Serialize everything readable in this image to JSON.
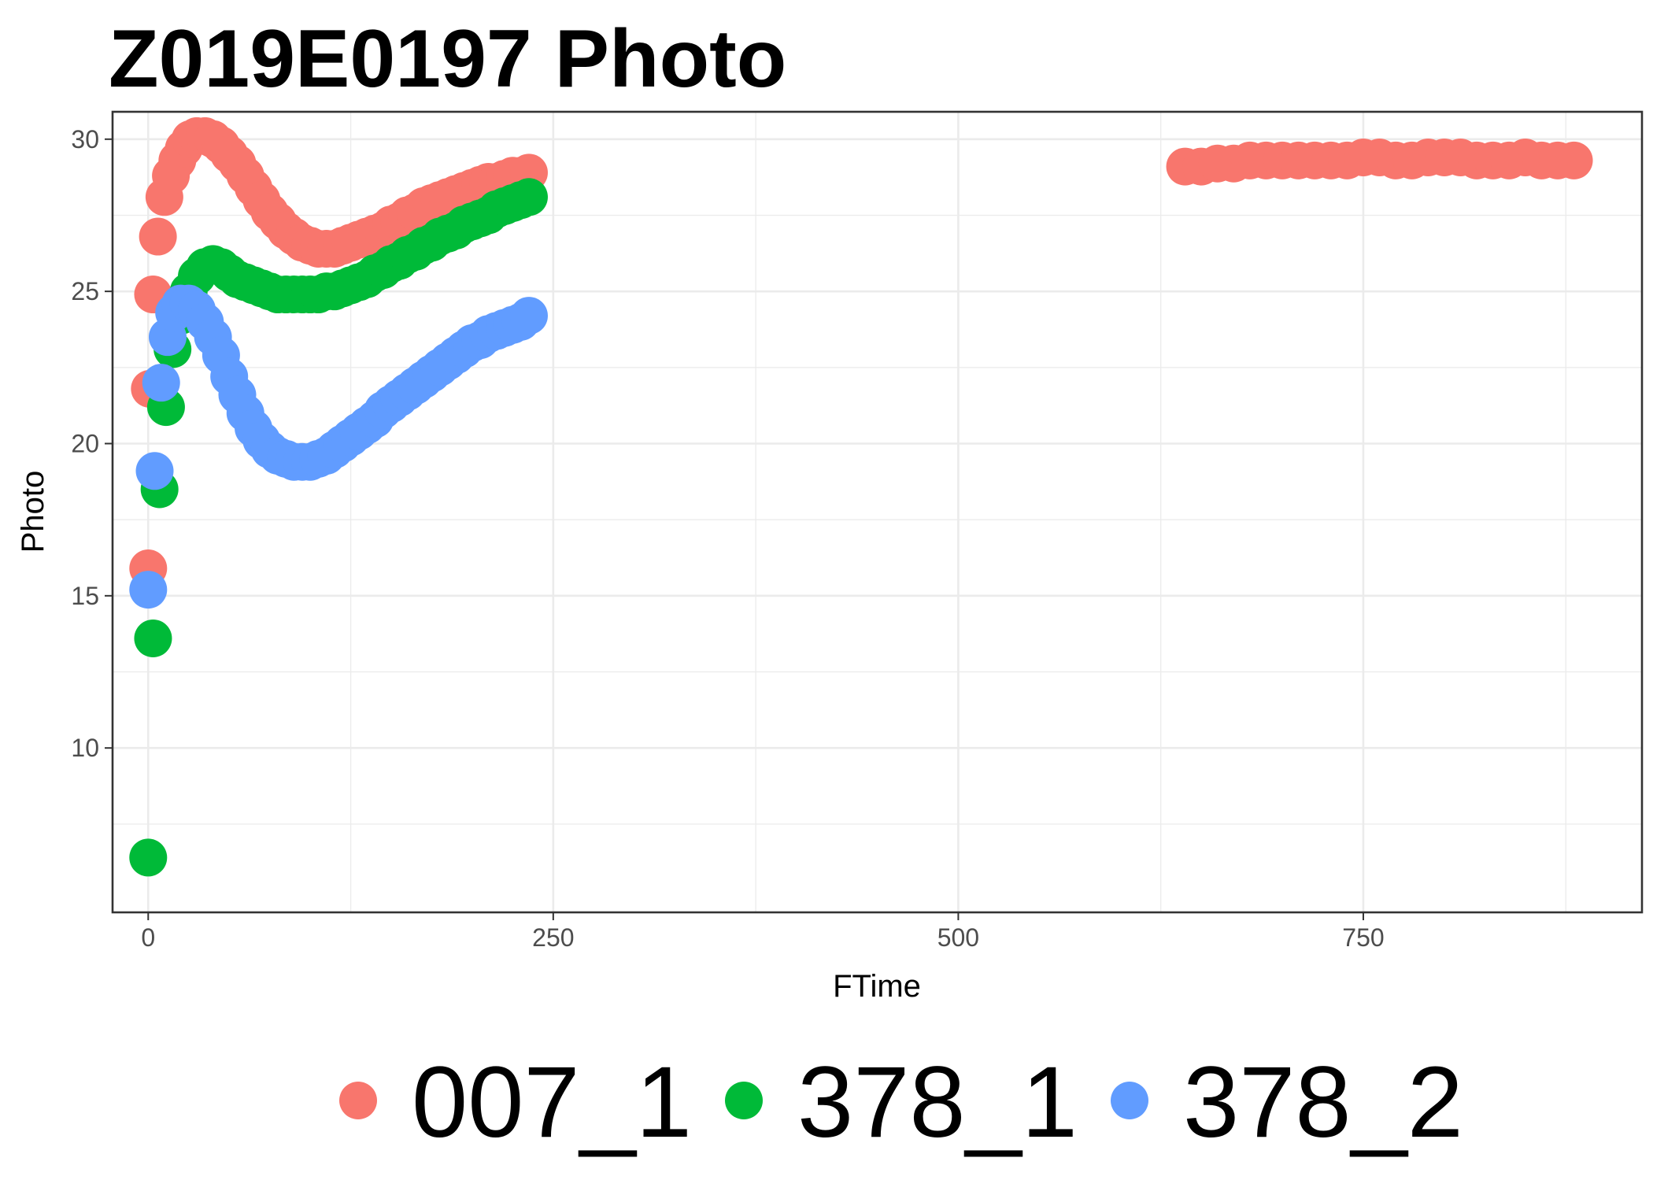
{
  "chart_data": {
    "type": "scatter",
    "title": "Z019E0197 Photo",
    "xlabel": "FTime",
    "ylabel": "Photo",
    "xlim": [
      -22,
      922
    ],
    "ylim": [
      4.6,
      30.9
    ],
    "x_ticks": [
      0,
      250,
      500,
      750
    ],
    "x_tick_labels": [
      "0",
      "250",
      "500",
      "750"
    ],
    "x_minor_ticks": [
      125,
      375,
      625,
      875
    ],
    "y_ticks": [
      10,
      15,
      20,
      25,
      30
    ],
    "y_tick_labels": [
      "10",
      "15",
      "20",
      "25",
      "30"
    ],
    "y_minor_ticks": [
      7.5,
      12.5,
      17.5,
      22.5,
      27.5
    ],
    "grid": true,
    "legend_position": "bottom",
    "series": [
      {
        "name": "007_1",
        "color": "#F8766D",
        "x": [
          0,
          1,
          3,
          6,
          10,
          14,
          18,
          22,
          26,
          30,
          35,
          40,
          45,
          50,
          55,
          60,
          65,
          70,
          75,
          80,
          85,
          90,
          95,
          100,
          105,
          110,
          115,
          120,
          125,
          130,
          135,
          140,
          145,
          150,
          155,
          160,
          165,
          170,
          175,
          180,
          185,
          190,
          195,
          200,
          205,
          210,
          215,
          220,
          225,
          230,
          235,
          640,
          650,
          660,
          670,
          680,
          690,
          700,
          710,
          720,
          730,
          740,
          750,
          760,
          770,
          780,
          790,
          800,
          810,
          820,
          830,
          840,
          850,
          860,
          870,
          880
        ],
        "y": [
          15.9,
          21.8,
          24.9,
          26.8,
          28.1,
          28.8,
          29.3,
          29.7,
          30.0,
          30.1,
          30.1,
          30.0,
          29.8,
          29.5,
          29.2,
          28.8,
          28.4,
          28.0,
          27.6,
          27.3,
          27.0,
          26.8,
          26.6,
          26.5,
          26.4,
          26.4,
          26.4,
          26.5,
          26.6,
          26.7,
          26.8,
          26.9,
          27.0,
          27.2,
          27.3,
          27.5,
          27.6,
          27.8,
          27.9,
          28.0,
          28.1,
          28.2,
          28.3,
          28.4,
          28.5,
          28.6,
          28.6,
          28.7,
          28.8,
          28.8,
          28.9,
          29.1,
          29.1,
          29.2,
          29.2,
          29.3,
          29.3,
          29.3,
          29.3,
          29.3,
          29.3,
          29.3,
          29.4,
          29.4,
          29.3,
          29.3,
          29.4,
          29.4,
          29.4,
          29.3,
          29.3,
          29.3,
          29.4,
          29.3,
          29.3,
          29.3
        ],
        "note_x_unit": ""
      },
      {
        "name": "378_1",
        "color": "#00BA38",
        "x": [
          0,
          3,
          7,
          11,
          15,
          20,
          25,
          30,
          35,
          40,
          45,
          50,
          55,
          60,
          65,
          70,
          75,
          80,
          85,
          90,
          95,
          100,
          105,
          110,
          115,
          120,
          125,
          130,
          135,
          140,
          145,
          150,
          155,
          160,
          165,
          170,
          175,
          180,
          185,
          190,
          195,
          200,
          205,
          210,
          215,
          220,
          225,
          230,
          235
        ],
        "y": [
          6.4,
          13.6,
          18.5,
          21.2,
          23.1,
          24.2,
          25.0,
          25.5,
          25.8,
          25.9,
          25.8,
          25.6,
          25.4,
          25.3,
          25.2,
          25.1,
          25.0,
          24.9,
          24.9,
          24.9,
          24.9,
          24.9,
          24.9,
          25.0,
          25.0,
          25.1,
          25.2,
          25.3,
          25.4,
          25.6,
          25.7,
          25.9,
          26.0,
          26.2,
          26.3,
          26.5,
          26.6,
          26.8,
          26.9,
          27.0,
          27.2,
          27.3,
          27.4,
          27.5,
          27.7,
          27.8,
          27.9,
          28.0,
          28.1
        ]
      },
      {
        "name": "378_2",
        "color": "#619CFF",
        "x": [
          0,
          4,
          8,
          12,
          16,
          20,
          25,
          30,
          35,
          40,
          45,
          50,
          55,
          60,
          65,
          70,
          75,
          80,
          85,
          90,
          95,
          100,
          105,
          110,
          115,
          120,
          125,
          130,
          135,
          140,
          145,
          150,
          155,
          160,
          165,
          170,
          175,
          180,
          185,
          190,
          195,
          200,
          205,
          210,
          215,
          220,
          225,
          230,
          235
        ],
        "y": [
          15.2,
          19.1,
          22.0,
          23.5,
          24.3,
          24.6,
          24.6,
          24.4,
          24.0,
          23.5,
          22.9,
          22.2,
          21.6,
          21.0,
          20.5,
          20.1,
          19.8,
          19.6,
          19.5,
          19.4,
          19.4,
          19.4,
          19.5,
          19.6,
          19.8,
          20.0,
          20.2,
          20.4,
          20.6,
          20.8,
          21.1,
          21.3,
          21.5,
          21.7,
          21.9,
          22.1,
          22.3,
          22.5,
          22.7,
          22.9,
          23.1,
          23.3,
          23.4,
          23.6,
          23.7,
          23.8,
          23.9,
          24.0,
          24.2
        ]
      }
    ]
  }
}
